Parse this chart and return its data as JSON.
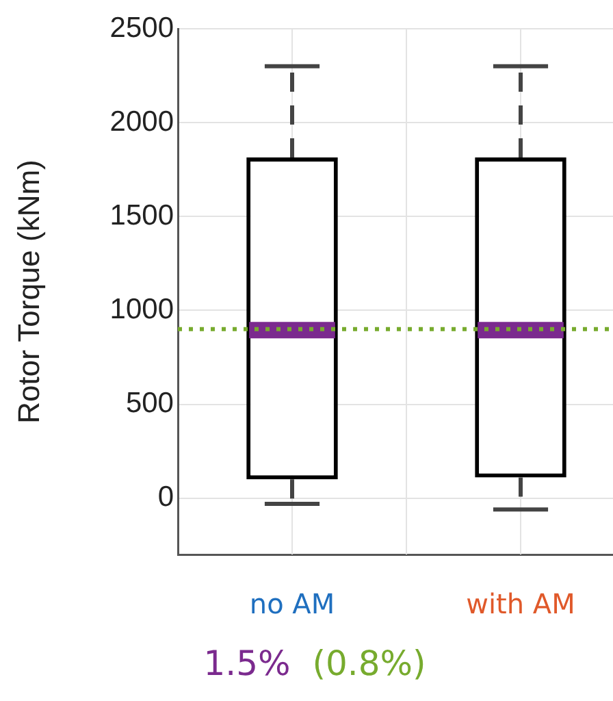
{
  "chart_data": {
    "type": "box",
    "ylabel": "Rotor Torque (kNm)",
    "categories": [
      "no AM",
      "with AM"
    ],
    "boxes": [
      {
        "low": -30,
        "q1": 100,
        "median": 895,
        "q3": 1815,
        "high": 2300
      },
      {
        "low": -60,
        "q1": 110,
        "median": 895,
        "q3": 1815,
        "high": 2300
      }
    ],
    "color": "#000000",
    "ylim": [
      -300,
      2500
    ],
    "yticks": [
      0,
      500,
      1000,
      1500,
      2000,
      2500
    ],
    "grid": true,
    "legend": false,
    "ref_lines": [
      {
        "axis": "y",
        "value": 900,
        "color": "#77ab2e",
        "line_style": "dotted"
      }
    ],
    "annotations": [
      "1.5%",
      "(0.8%)"
    ]
  }
}
